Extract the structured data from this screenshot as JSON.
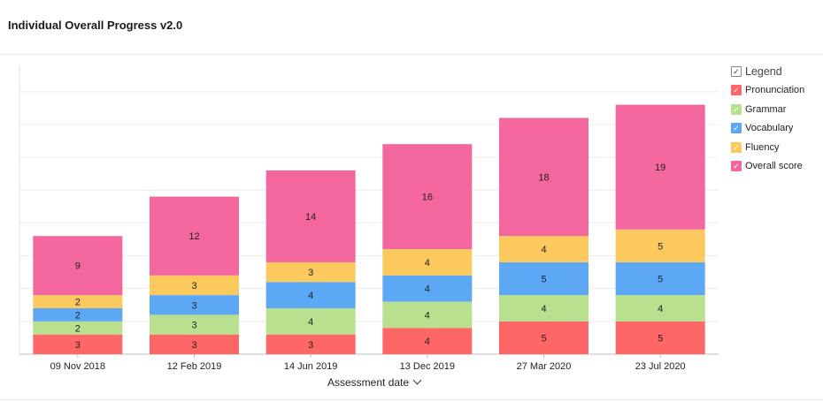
{
  "title": "Individual Overall Progress v2.0",
  "legend": {
    "header": "Legend",
    "items": [
      {
        "label": "Pronunciation",
        "color": "#ff6666"
      },
      {
        "label": "Grammar",
        "color": "#b8e08e"
      },
      {
        "label": "Vocabulary",
        "color": "#5ca8f5"
      },
      {
        "label": "Fluency",
        "color": "#fcc95e"
      },
      {
        "label": "Overall score",
        "color": "#f4669e"
      }
    ]
  },
  "xaxis": {
    "label": "Assessment date"
  },
  "chart_data": {
    "type": "bar",
    "stacked": true,
    "categories": [
      "09 Nov 2018",
      "12 Feb 2019",
      "14 Jun 2019",
      "13 Dec 2019",
      "27 Mar 2020",
      "23 Jul 2020"
    ],
    "series": [
      {
        "name": "Pronunciation",
        "color": "#ff6666",
        "values": [
          3,
          3,
          3,
          4,
          5,
          5
        ]
      },
      {
        "name": "Grammar",
        "color": "#b8e08e",
        "values": [
          2,
          3,
          4,
          4,
          4,
          4
        ]
      },
      {
        "name": "Vocabulary",
        "color": "#5ca8f5",
        "values": [
          2,
          3,
          4,
          4,
          5,
          5
        ]
      },
      {
        "name": "Fluency",
        "color": "#fcc95e",
        "values": [
          2,
          3,
          3,
          4,
          4,
          5
        ]
      },
      {
        "name": "Overall score",
        "color": "#f4669e",
        "values": [
          9,
          12,
          14,
          16,
          18,
          19
        ]
      }
    ],
    "xlabel": "Assessment date",
    "ylabel": "",
    "ylim": [
      0,
      44
    ],
    "grid": true,
    "legend_position": "right"
  }
}
